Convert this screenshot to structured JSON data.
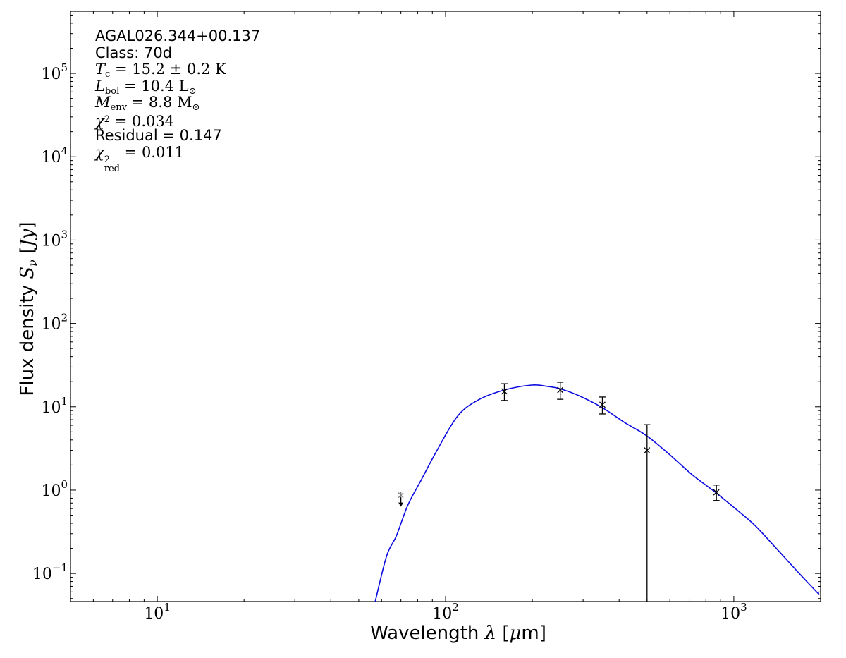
{
  "figure": {
    "background": "#ffffff",
    "annotation": {
      "lines": [
        {
          "name": "annotation-source-name",
          "tokens": [
            {
              "t": "AGAL026.344+00.137",
              "f": "s"
            }
          ]
        },
        {
          "name": "annotation-class",
          "tokens": [
            {
              "t": "Class: 70d",
              "f": "s"
            }
          ]
        },
        {
          "name": "annotation-temperature",
          "tokens": [
            {
              "t": "T",
              "f": "ri"
            },
            {
              "t": "c",
              "f": "r",
              "v": "sub"
            },
            {
              "t": " = 15.2 ± 0.2 K",
              "f": "r"
            }
          ]
        },
        {
          "name": "annotation-luminosity",
          "tokens": [
            {
              "t": "L",
              "f": "ri"
            },
            {
              "t": "bol",
              "f": "r",
              "v": "sub"
            },
            {
              "t": " = 10.4 L",
              "f": "r"
            },
            {
              "t": "⊙",
              "f": "r",
              "v": "sub"
            }
          ]
        },
        {
          "name": "annotation-envelope-mass",
          "tokens": [
            {
              "t": "M",
              "f": "ri"
            },
            {
              "t": "env",
              "f": "r",
              "v": "sub"
            },
            {
              "t": " = 8.8 M",
              "f": "r"
            },
            {
              "t": "⊙",
              "f": "r",
              "v": "sub"
            }
          ]
        },
        {
          "name": "annotation-chi2",
          "tokens": [
            {
              "t": "χ",
              "f": "ri"
            },
            {
              "t": "2",
              "f": "r",
              "v": "sup"
            },
            {
              "t": " = 0.034",
              "f": "r"
            }
          ]
        },
        {
          "name": "annotation-residual",
          "tokens": [
            {
              "t": "Residual = 0.147",
              "f": "s"
            }
          ]
        },
        {
          "name": "annotation-chi2-reduced",
          "tokens": [
            {
              "t": "χ",
              "f": "ri"
            },
            {
              "stack": {
                "sup": "2",
                "sub": "red"
              },
              "f": "r"
            },
            {
              "t": " = 0.011",
              "f": "r"
            }
          ]
        }
      ]
    },
    "x_label_tokens": [
      {
        "t": "Wavelength ",
        "f": "s"
      },
      {
        "t": "λ",
        "f": "ri"
      },
      {
        "t": " [",
        "f": "s"
      },
      {
        "t": "μ",
        "f": "ri"
      },
      {
        "t": "m]",
        "f": "s"
      }
    ],
    "y_label_tokens": [
      {
        "t": "Flux density ",
        "f": "s"
      },
      {
        "t": "S",
        "f": "ri"
      },
      {
        "t": "ν",
        "f": "ri",
        "v": "sub"
      },
      {
        "t": " [",
        "f": "s"
      },
      {
        "t": "Jy",
        "f": "ri"
      },
      {
        "t": "]",
        "f": "s"
      }
    ],
    "colors": {
      "curve": "#0b0be0",
      "data": "#000000",
      "upper_limit_marker": "#808080",
      "frame": "#000000"
    }
  },
  "chart_data": {
    "type": "line",
    "title": "AGAL026.344+00.137",
    "xlabel": "Wavelength λ [μm]",
    "ylabel": "Flux density Sν [Jy]",
    "x_scale": "log",
    "y_scale": "log",
    "xlim": [
      5,
      2000
    ],
    "ylim": [
      0.046,
      556000
    ],
    "x_major_ticks": [
      10,
      100,
      1000
    ],
    "y_major_ticks": [
      0.1,
      1,
      10,
      100,
      1000,
      10000,
      100000
    ],
    "grid": false,
    "legend": "none",
    "model_curve": {
      "name": "greybody-fit",
      "wavelength_um": [
        57,
        62.5,
        67.5,
        74,
        82.5,
        93,
        110,
        130,
        160,
        199,
        225,
        249,
        290,
        349,
        420,
        498,
        600,
        717,
        870,
        1094,
        1200,
        1386,
        1700,
        1976
      ],
      "flux_jy": [
        0.046,
        0.163,
        0.282,
        0.66,
        1.34,
        2.92,
        7.7,
        12.1,
        15.9,
        18.2,
        17.6,
        16.5,
        13.6,
        9.8,
        6.4,
        4.5,
        2.65,
        1.53,
        0.92,
        0.48,
        0.36,
        0.21,
        0.097,
        0.056
      ]
    },
    "photometry": [
      {
        "wavelength_um": 160,
        "flux_jy": 15.3,
        "err_plus": 3.6,
        "err_minus": 3.4,
        "lower_error_below_axis": false
      },
      {
        "wavelength_um": 250,
        "flux_jy": 15.9,
        "err_plus": 3.8,
        "err_minus": 3.6,
        "lower_error_below_axis": false
      },
      {
        "wavelength_um": 350,
        "flux_jy": 10.6,
        "err_plus": 2.5,
        "err_minus": 2.4,
        "lower_error_below_axis": false
      },
      {
        "wavelength_um": 500,
        "flux_jy": 3.0,
        "err_plus": 3.1,
        "err_minus": null,
        "lower_error_below_axis": true
      },
      {
        "wavelength_um": 870,
        "flux_jy": 0.94,
        "err_plus": 0.21,
        "err_minus": 0.19,
        "lower_error_below_axis": false
      }
    ],
    "upper_limits": [
      {
        "wavelength_um": 70,
        "flux_jy": 0.87,
        "arrow_tip_flux_jy": 0.63
      }
    ],
    "fit_parameters": {
      "source": "AGAL026.344+00.137",
      "class": "70d",
      "T_c": "15.2 ± 0.2 K",
      "L_bol": "10.4 L⊙",
      "M_env": "8.8 M⊙",
      "chi2": 0.034,
      "residual": 0.147,
      "chi2_red": 0.011
    }
  }
}
